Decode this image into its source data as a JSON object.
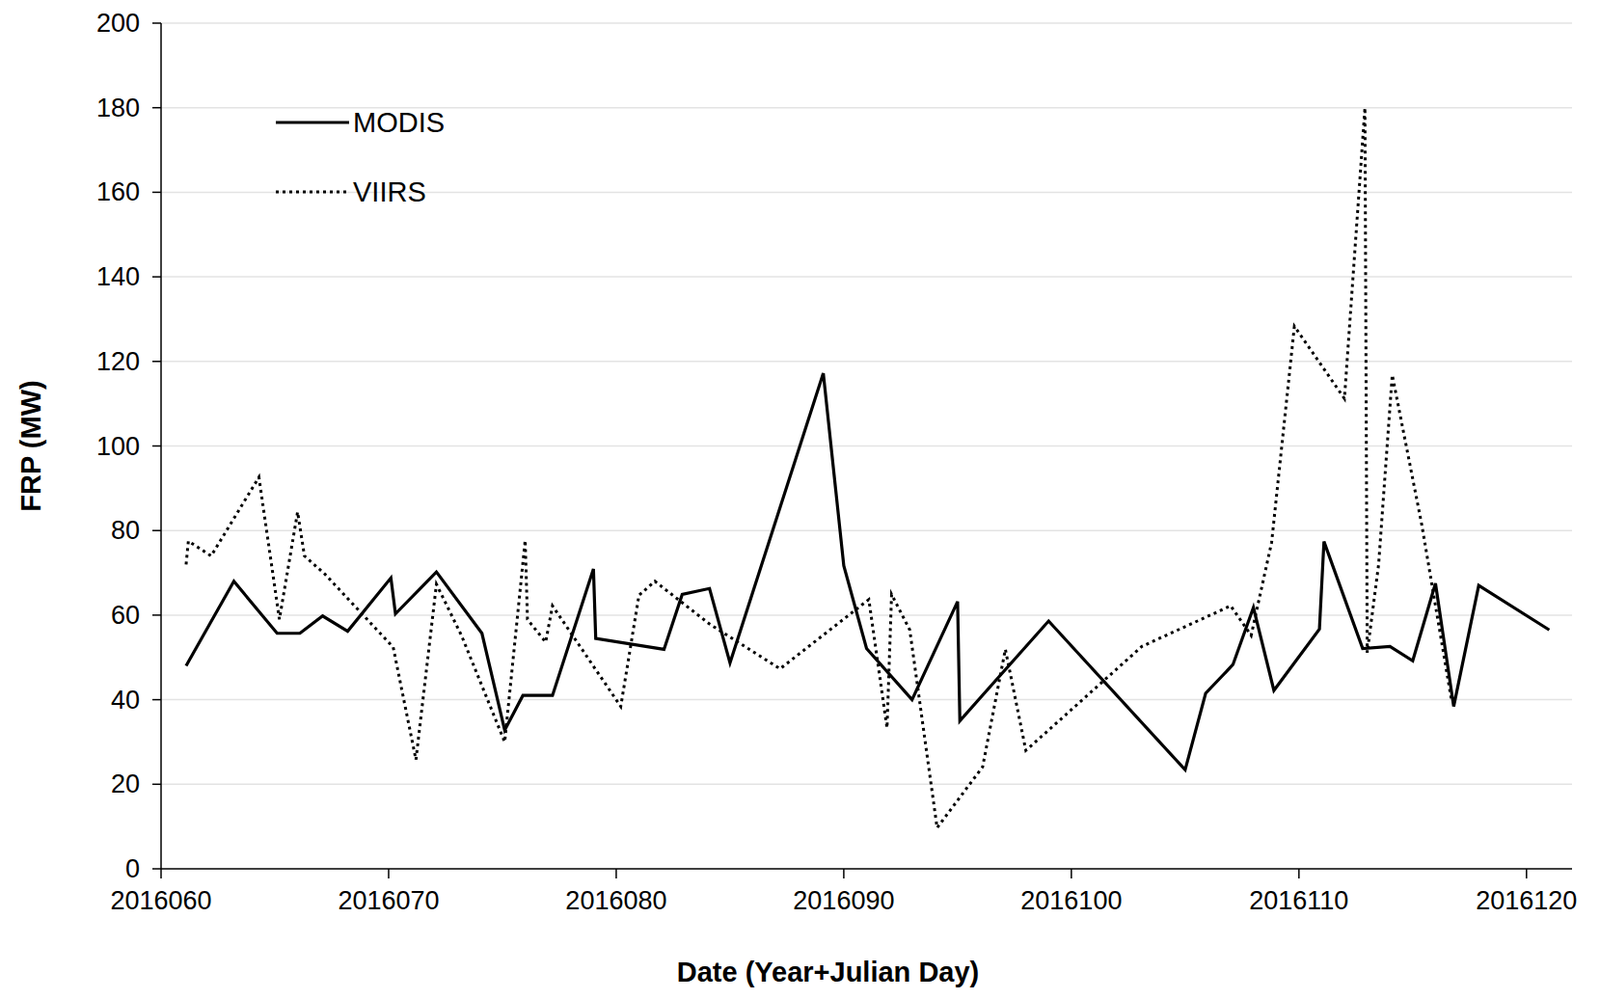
{
  "chart_data": {
    "type": "line",
    "x_label": "Date (Year+Julian Day)",
    "y_label": "FRP (MW)",
    "xlim": [
      2016060,
      2016122
    ],
    "xticks": [
      2016060,
      2016070,
      2016080,
      2016090,
      2016100,
      2016110,
      2016120
    ],
    "ylim": [
      0,
      200
    ],
    "yticks": [
      0,
      20,
      40,
      60,
      80,
      100,
      120,
      140,
      160,
      180,
      200
    ],
    "grid": true,
    "legend": "upper left",
    "series": [
      {
        "name": "MODIS",
        "color": "#000000",
        "line_style": "solid",
        "x": [
          2016061.1,
          2016063.2,
          2016065.1,
          2016066.1,
          2016067.1,
          2016068.2,
          2016070.1,
          2016070.3,
          2016072.1,
          2016074.1,
          2016075.1,
          2016075.9,
          2016077.2,
          2016079.0,
          2016079.1,
          2016082.1,
          2016082.9,
          2016084.1,
          2016085.0,
          2016089.1,
          2016090.0,
          2016091.0,
          2016093.0,
          2016095.0,
          2016095.1,
          2016099.0,
          2016105.0,
          2016105.9,
          2016107.1,
          2016108.0,
          2016108.9,
          2016110.9,
          2016111.1,
          2016112.8,
          2016114.0,
          2016115.0,
          2016116.0,
          2016116.8,
          2016117.9,
          2016121.0
        ],
        "values": [
          48,
          68,
          55.7,
          55.7,
          59.8,
          56.2,
          68.8,
          60.3,
          70.2,
          55.7,
          32.8,
          41,
          41,
          70.9,
          54.5,
          51.9,
          64.9,
          66.3,
          48.7,
          117.2,
          71.7,
          52.1,
          40,
          63.2,
          35,
          58.6,
          23.4,
          41.5,
          48.3,
          61.8,
          42.2,
          56.7,
          77.4,
          52.1,
          52.6,
          49.2,
          67.5,
          38.4,
          67,
          56.5
        ]
      },
      {
        "name": "VIIRS",
        "color": "#000000",
        "line_style": "dotted",
        "x": [
          2016061.1,
          2016061.2,
          2016062.2,
          2016064.3,
          2016065.2,
          2016066.0,
          2016066.3,
          2016067.2,
          2016070.2,
          2016071.2,
          2016072.1,
          2016073.2,
          2016075.1,
          2016076.0,
          2016076.1,
          2016076.9,
          2016077.2,
          2016080.2,
          2016081.0,
          2016081.7,
          2016084.1,
          2016087.2,
          2016091.1,
          2016091.9,
          2016092.1,
          2016092.9,
          2016094.1,
          2016096.1,
          2016097.1,
          2016098.0,
          2016099.0,
          2016103.1,
          2016107.0,
          2016107.9,
          2016108.8,
          2016109.8,
          2016112.0,
          2016112.9,
          2016113.0,
          2016113.5,
          2016114.1,
          2016115.4,
          2016116.7
        ],
        "values": [
          72,
          77.5,
          74,
          92.6,
          59,
          84.4,
          74,
          69.7,
          52.4,
          25.8,
          67.3,
          55.2,
          30,
          77.7,
          59,
          53.6,
          62.2,
          38.4,
          64.7,
          68,
          57.9,
          47.3,
          63.7,
          33.3,
          64.9,
          56.5,
          9.7,
          24.1,
          51.9,
          28,
          32.8,
          52.6,
          62.2,
          55.2,
          77.2,
          128.3,
          111.2,
          180,
          51.1,
          71.9,
          116.8,
          81.3,
          40
        ]
      }
    ]
  }
}
